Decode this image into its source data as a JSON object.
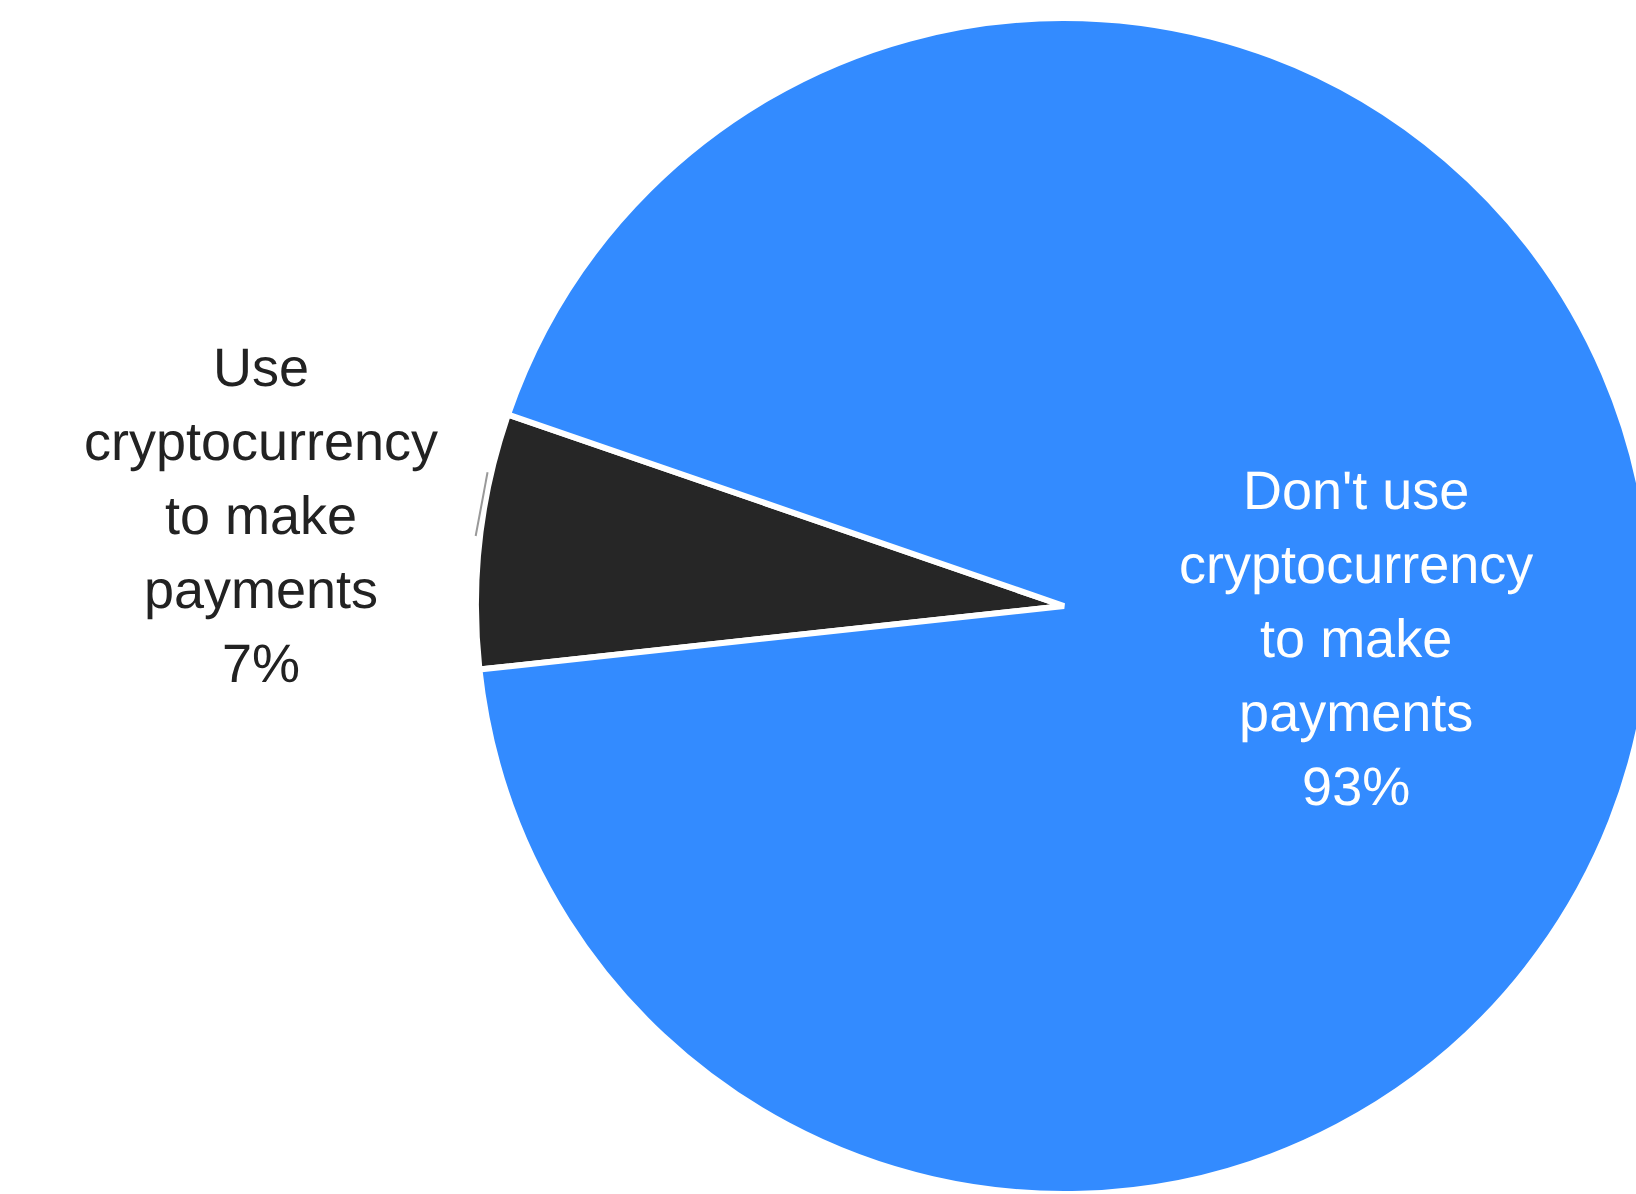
{
  "chart_data": {
    "type": "pie",
    "categories": [
      "Use cryptocurrency to make payments",
      "Don't use cryptocurrency to make payments"
    ],
    "values": [
      7,
      93
    ],
    "value_labels": [
      "7%",
      "93%"
    ],
    "colors": [
      "#262626",
      "#338bff"
    ]
  }
}
